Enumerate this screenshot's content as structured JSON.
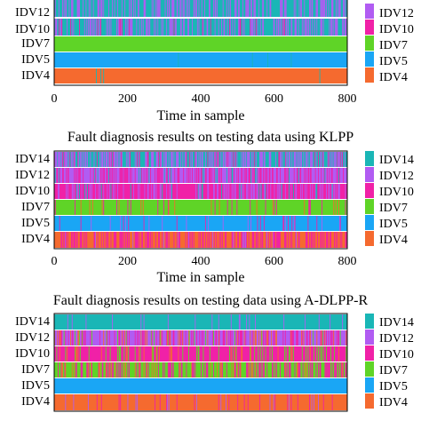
{
  "colors": {
    "IDV14": "#1ab6b6",
    "IDV12": "#b15cf2",
    "IDV10": "#f021a7",
    "IDV7": "#5fd427",
    "IDV5": "#1aa6f5",
    "IDV4": "#f56a2f"
  },
  "chart_data": [
    {
      "type": "heatmap",
      "title": "",
      "xlabel": "Time in sample",
      "ylabel": "",
      "xlim": [
        0,
        800
      ],
      "x_ticks": [
        "0",
        "200",
        "400",
        "600",
        "800"
      ],
      "rows_visible": [
        "IDV12",
        "IDV10",
        "IDV7",
        "IDV5",
        "IDV4"
      ],
      "legend": [
        "IDV12",
        "IDV10",
        "IDV7",
        "IDV5",
        "IDV4"
      ],
      "legend_position": "right",
      "series": [
        {
          "name": "IDV12",
          "base": "IDV14",
          "noise": [
            [
              "IDV12",
              0.38
            ]
          ]
        },
        {
          "name": "IDV10",
          "base": "IDV14",
          "noise": [
            [
              "IDV12",
              0.35
            ],
            [
              "IDV10",
              0.05
            ]
          ]
        },
        {
          "name": "IDV7",
          "base": "IDV7",
          "noise": []
        },
        {
          "name": "IDV5",
          "base": "IDV5",
          "noise": [
            [
              "IDV14",
              0.01
            ]
          ]
        },
        {
          "name": "IDV4",
          "base": "IDV4",
          "noise": [
            [
              "IDV14",
              0.01
            ]
          ]
        }
      ]
    },
    {
      "type": "heatmap",
      "title": "Fault diagnosis results on testing data using KLPP",
      "xlabel": "Time in sample",
      "ylabel": "",
      "xlim": [
        0,
        800
      ],
      "x_ticks": [
        "0",
        "200",
        "400",
        "600",
        "800"
      ],
      "rows_visible": [
        "IDV14",
        "IDV12",
        "IDV10",
        "IDV7",
        "IDV5",
        "IDV4"
      ],
      "legend": [
        "IDV14",
        "IDV12",
        "IDV10",
        "IDV7",
        "IDV5",
        "IDV4"
      ],
      "legend_position": "right",
      "series": [
        {
          "name": "IDV14",
          "base": "IDV14",
          "noise": [
            [
              "IDV12",
              0.45
            ],
            [
              "IDV10",
              0.1
            ]
          ]
        },
        {
          "name": "IDV12",
          "base": "IDV12",
          "noise": [
            [
              "IDV10",
              0.4
            ],
            [
              "IDV14",
              0.08
            ]
          ]
        },
        {
          "name": "IDV10",
          "base": "IDV10",
          "noise": [
            [
              "IDV12",
              0.25
            ],
            [
              "IDV14",
              0.05
            ]
          ]
        },
        {
          "name": "IDV7",
          "base": "IDV7",
          "noise": [
            [
              "IDV10",
              0.06
            ],
            [
              "IDV4",
              0.04
            ]
          ]
        },
        {
          "name": "IDV5",
          "base": "IDV5",
          "noise": [
            [
              "IDV10",
              0.04
            ],
            [
              "IDV12",
              0.03
            ]
          ]
        },
        {
          "name": "IDV4",
          "base": "IDV4",
          "noise": [
            [
              "IDV10",
              0.35
            ],
            [
              "IDV12",
              0.05
            ]
          ]
        }
      ]
    },
    {
      "type": "heatmap",
      "title": "Fault diagnosis results on testing data using A-DLPP-R",
      "xlabel": "",
      "ylabel": "",
      "xlim": [
        0,
        800
      ],
      "x_ticks": [],
      "rows_visible": [
        "IDV14",
        "IDV12",
        "IDV10",
        "IDV7",
        "IDV5",
        "IDV4"
      ],
      "legend": [
        "IDV14",
        "IDV12",
        "IDV10",
        "IDV7",
        "IDV5",
        "IDV4"
      ],
      "legend_position": "right",
      "series": [
        {
          "name": "IDV14",
          "base": "IDV14",
          "noise": [
            [
              "IDV12",
              0.05
            ]
          ]
        },
        {
          "name": "IDV12",
          "base": "IDV12",
          "noise": [
            [
              "IDV10",
              0.25
            ],
            [
              "IDV4",
              0.1
            ],
            [
              "IDV7",
              0.05
            ]
          ]
        },
        {
          "name": "IDV10",
          "base": "IDV10",
          "noise": [
            [
              "IDV7",
              0.12
            ],
            [
              "IDV4",
              0.05
            ]
          ]
        },
        {
          "name": "IDV7",
          "base": "IDV7",
          "noise": [
            [
              "IDV10",
              0.3
            ],
            [
              "IDV4",
              0.1
            ]
          ]
        },
        {
          "name": "IDV5",
          "base": "IDV5",
          "noise": []
        },
        {
          "name": "IDV4",
          "base": "IDV4",
          "noise": [
            [
              "IDV10",
              0.05
            ],
            [
              "IDV12",
              0.04
            ]
          ]
        }
      ]
    }
  ]
}
